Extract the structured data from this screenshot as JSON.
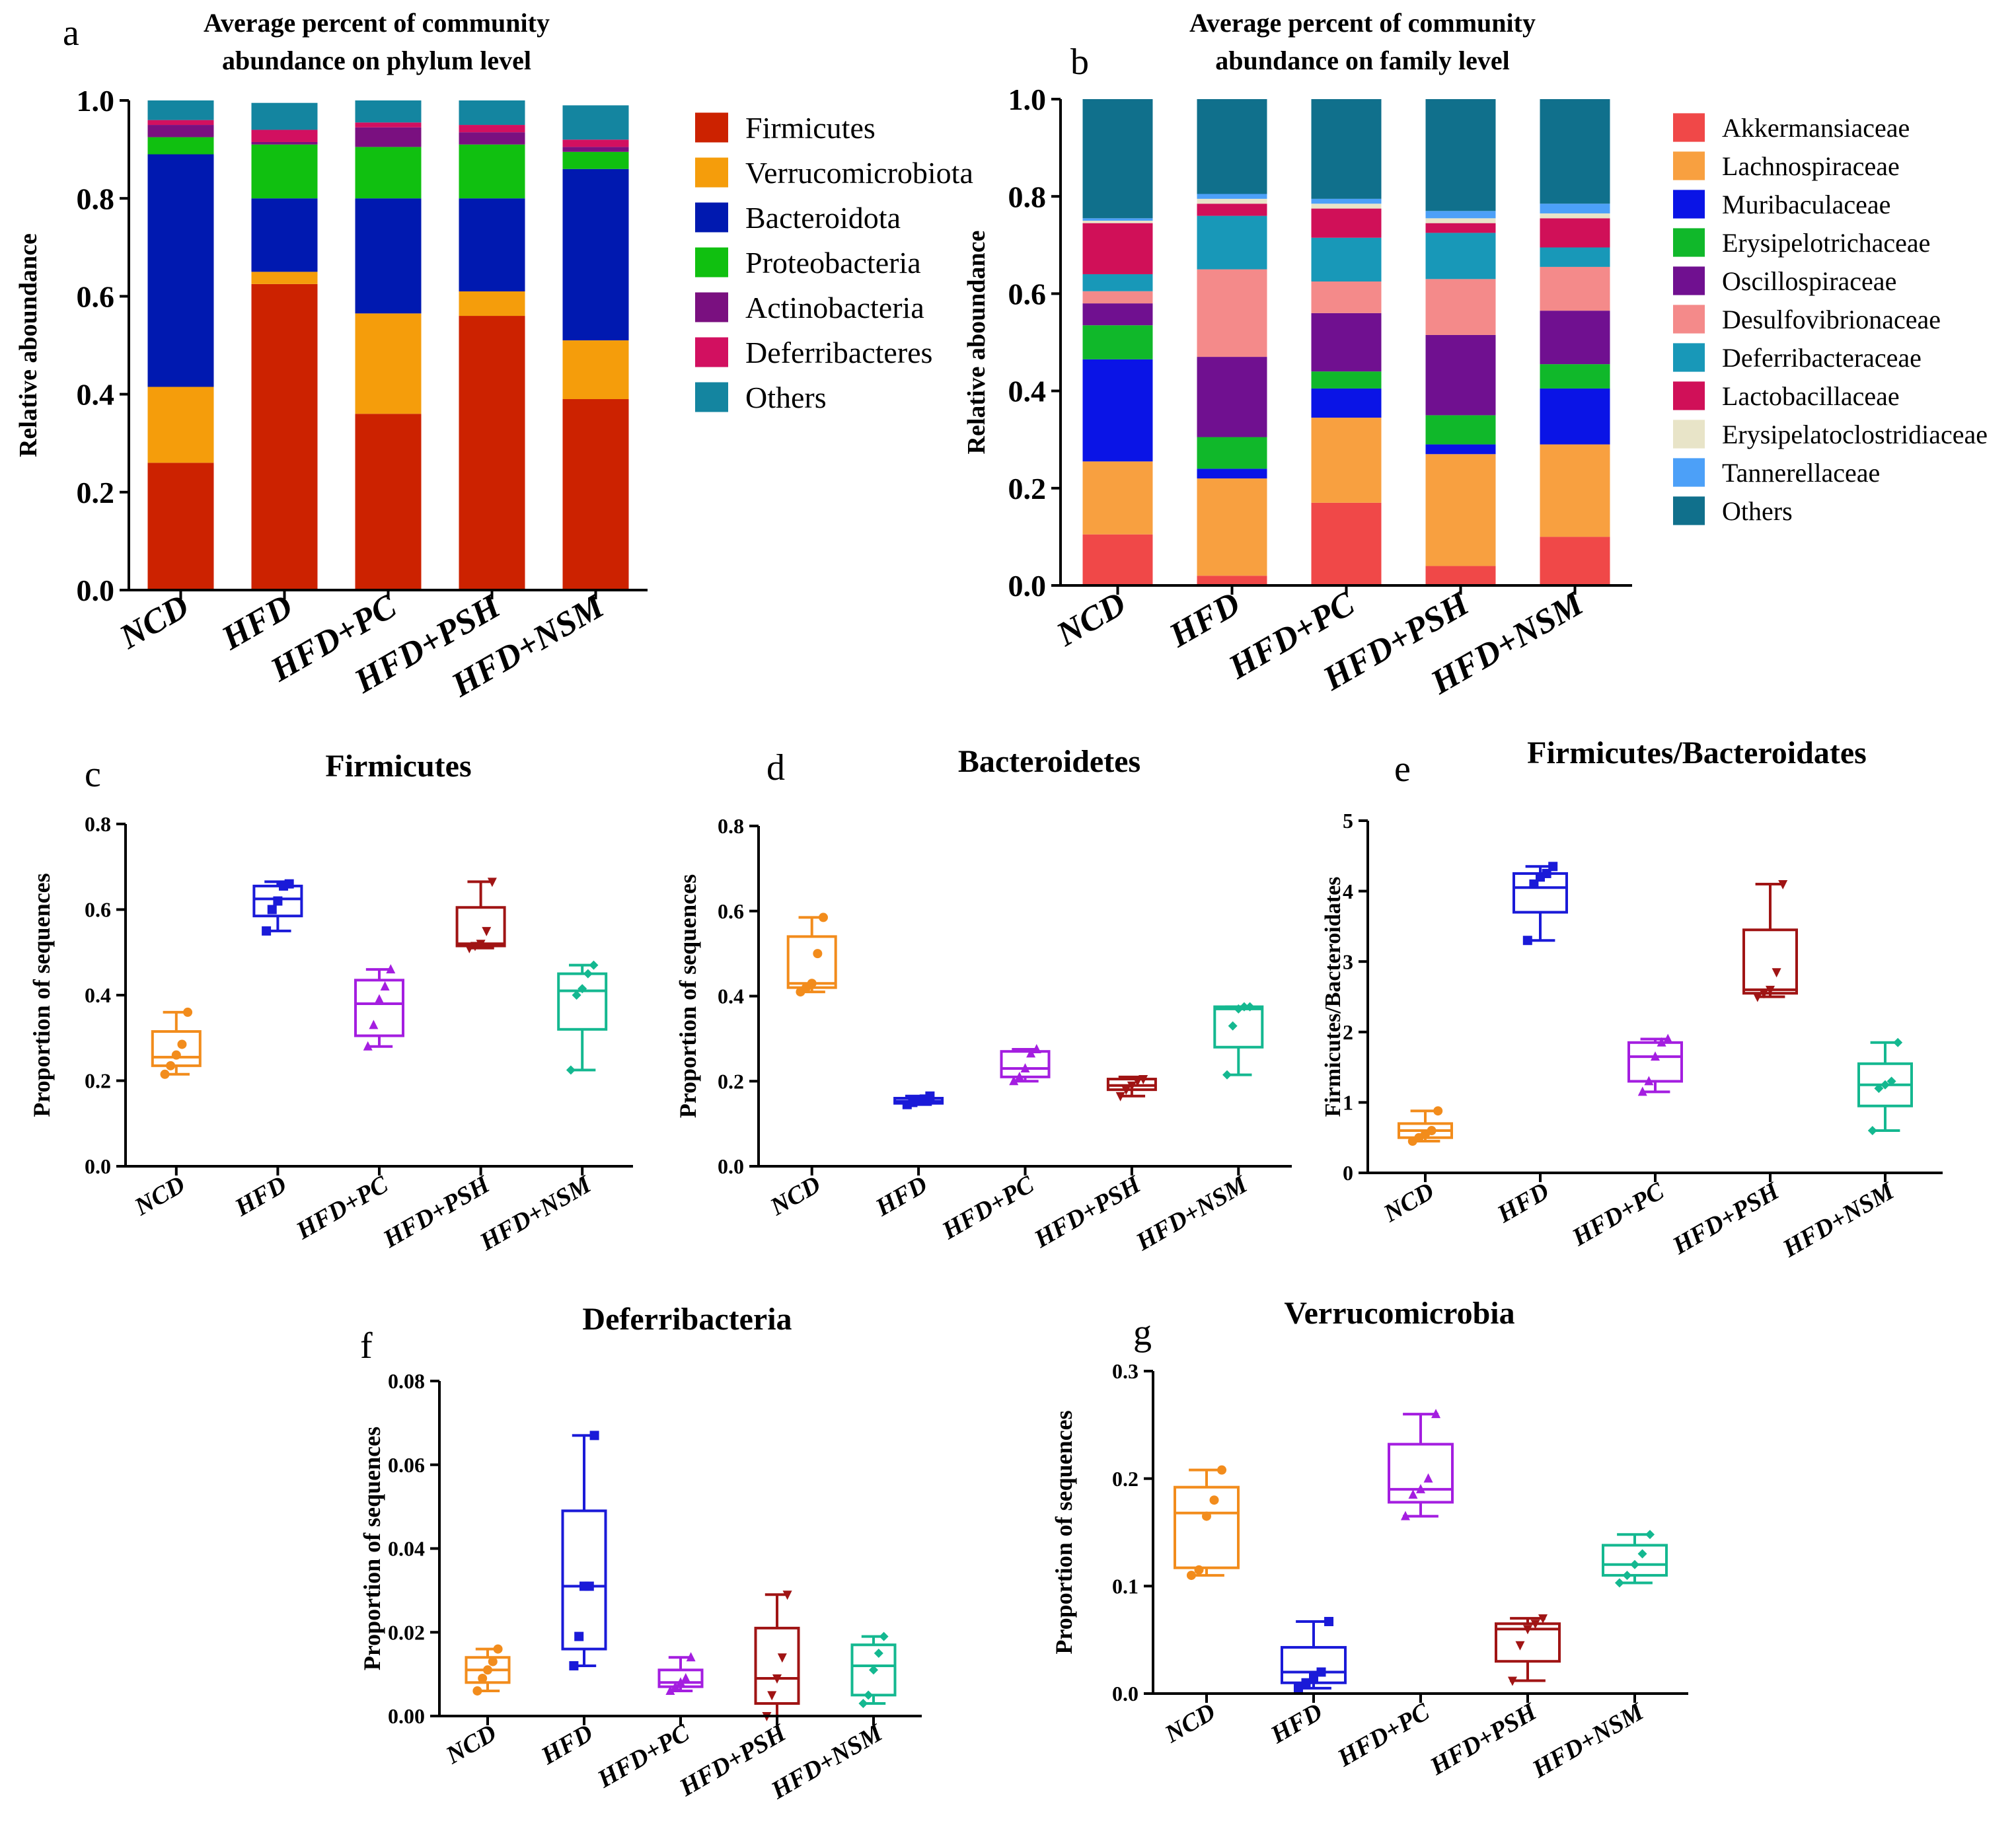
{
  "groups": [
    "NCD",
    "HFD",
    "HFD+PC",
    "HFD+PSH",
    "HFD+NSM"
  ],
  "chart_data": [
    {
      "id": "a",
      "panel_label": "a",
      "type": "bar",
      "stacked": true,
      "title_lines": [
        "Average percent of community",
        "abundance on phylum level"
      ],
      "ylabel": "Relative aboundance",
      "ylim": [
        0,
        1
      ],
      "yticks": [
        "0.0",
        "0.2",
        "0.4",
        "0.6",
        "0.8",
        "1.0"
      ],
      "categories": [
        "NCD",
        "HFD",
        "HFD+PC",
        "HFD+PSH",
        "HFD+NSM"
      ],
      "legend_position": "right",
      "series": [
        {
          "name": "Firmicutes",
          "color": "#cc2200",
          "values": [
            0.26,
            0.625,
            0.36,
            0.56,
            0.39
          ]
        },
        {
          "name": "Verrucomicrobiota",
          "color": "#f59d0b",
          "values": [
            0.155,
            0.025,
            0.205,
            0.05,
            0.12
          ]
        },
        {
          "name": "Bacteroidota",
          "color": "#0019b0",
          "values": [
            0.475,
            0.15,
            0.235,
            0.19,
            0.35
          ]
        },
        {
          "name": "Proteobacteria",
          "color": "#10c010",
          "values": [
            0.035,
            0.11,
            0.105,
            0.11,
            0.035
          ]
        },
        {
          "name": "Actinobacteria",
          "color": "#7a1080",
          "values": [
            0.025,
            0.005,
            0.04,
            0.025,
            0.01
          ]
        },
        {
          "name": "Deferribacteres",
          "color": "#d21060",
          "values": [
            0.01,
            0.025,
            0.01,
            0.015,
            0.015
          ]
        },
        {
          "name": "Others",
          "color": "#1485a0",
          "values": [
            0.04,
            0.055,
            0.045,
            0.05,
            0.07
          ]
        }
      ]
    },
    {
      "id": "b",
      "panel_label": "b",
      "type": "bar",
      "stacked": true,
      "title_lines": [
        "Average percent of community",
        "abundance on family level"
      ],
      "ylabel": "Relative aboundance",
      "ylim": [
        0,
        1
      ],
      "yticks": [
        "0.0",
        "0.2",
        "0.4",
        "0.6",
        "0.8",
        "1.0"
      ],
      "categories": [
        "NCD",
        "HFD",
        "HFD+PC",
        "HFD+PSH",
        "HFD+NSM"
      ],
      "legend_position": "right",
      "series": [
        {
          "name": "Akkermansiaceae",
          "color": "#f04848",
          "values": [
            0.105,
            0.02,
            0.17,
            0.04,
            0.1
          ]
        },
        {
          "name": "Lachnospiraceae",
          "color": "#f8a040",
          "values": [
            0.15,
            0.2,
            0.175,
            0.23,
            0.19
          ]
        },
        {
          "name": "Muribaculaceae",
          "color": "#0a14e6",
          "values": [
            0.21,
            0.02,
            0.06,
            0.02,
            0.115
          ]
        },
        {
          "name": "Erysipelotrichaceae",
          "color": "#10b82a",
          "values": [
            0.07,
            0.065,
            0.035,
            0.06,
            0.05
          ]
        },
        {
          "name": "Oscillospiraceae",
          "color": "#701090",
          "values": [
            0.045,
            0.165,
            0.12,
            0.165,
            0.11
          ]
        },
        {
          "name": "Desulfovibrionaceae",
          "color": "#f48a8a",
          "values": [
            0.025,
            0.18,
            0.065,
            0.115,
            0.09
          ]
        },
        {
          "name": "Deferribacteraceae",
          "color": "#1898b8",
          "values": [
            0.035,
            0.11,
            0.09,
            0.095,
            0.04
          ]
        },
        {
          "name": "Lactobacillaceae",
          "color": "#d01058",
          "values": [
            0.105,
            0.025,
            0.06,
            0.02,
            0.06
          ]
        },
        {
          "name": "Erysipelatoclostridiaceae",
          "color": "#e8e4c8",
          "values": [
            0.005,
            0.01,
            0.01,
            0.01,
            0.01
          ]
        },
        {
          "name": "Tannerellaceae",
          "color": "#4ca0f8",
          "values": [
            0.005,
            0.01,
            0.01,
            0.015,
            0.02
          ]
        },
        {
          "name": "Others",
          "color": "#10708c",
          "values": [
            0.245,
            0.195,
            0.21,
            0.23,
            0.215
          ]
        }
      ]
    },
    {
      "id": "c",
      "panel_label": "c",
      "type": "box",
      "title": "Firmicutes",
      "ylabel": "Proportion of sequences",
      "ylim": [
        0,
        0.8
      ],
      "yticks": [
        "0.0",
        "0.2",
        "0.4",
        "0.6",
        "0.8"
      ],
      "categories": [
        "NCD",
        "HFD",
        "HFD+PC",
        "HFD+PSH",
        "HFD+NSM"
      ],
      "boxes": [
        {
          "min": 0.215,
          "q1": 0.235,
          "median": 0.255,
          "q3": 0.315,
          "max": 0.36,
          "points": [
            0.215,
            0.235,
            0.26,
            0.285,
            0.36
          ]
        },
        {
          "min": 0.55,
          "q1": 0.585,
          "median": 0.625,
          "q3": 0.655,
          "max": 0.665,
          "points": [
            0.55,
            0.6,
            0.62,
            0.655,
            0.66
          ]
        },
        {
          "min": 0.28,
          "q1": 0.305,
          "median": 0.38,
          "q3": 0.435,
          "max": 0.46,
          "points": [
            0.28,
            0.33,
            0.39,
            0.42,
            0.46
          ]
        },
        {
          "min": 0.51,
          "q1": 0.515,
          "median": 0.52,
          "q3": 0.605,
          "max": 0.665,
          "points": [
            0.51,
            0.515,
            0.52,
            0.55,
            0.665
          ]
        },
        {
          "min": 0.225,
          "q1": 0.32,
          "median": 0.41,
          "q3": 0.45,
          "max": 0.47,
          "points": [
            0.225,
            0.4,
            0.415,
            0.45,
            0.47
          ]
        }
      ]
    },
    {
      "id": "d",
      "panel_label": "d",
      "type": "box",
      "title": "Bacteroidetes",
      "ylabel": "Proportion of sequences",
      "ylim": [
        0,
        0.8
      ],
      "yticks": [
        "0.0",
        "0.2",
        "0.4",
        "0.6",
        "0.8"
      ],
      "categories": [
        "NCD",
        "HFD",
        "HFD+PC",
        "HFD+PSH",
        "HFD+NSM"
      ],
      "boxes": [
        {
          "min": 0.41,
          "q1": 0.42,
          "median": 0.43,
          "q3": 0.54,
          "max": 0.585,
          "points": [
            0.41,
            0.42,
            0.43,
            0.5,
            0.585
          ]
        },
        {
          "min": 0.145,
          "q1": 0.148,
          "median": 0.153,
          "q3": 0.16,
          "max": 0.165,
          "points": [
            0.145,
            0.15,
            0.153,
            0.158,
            0.165
          ]
        },
        {
          "min": 0.2,
          "q1": 0.21,
          "median": 0.23,
          "q3": 0.27,
          "max": 0.275,
          "points": [
            0.2,
            0.21,
            0.23,
            0.265,
            0.275
          ]
        },
        {
          "min": 0.165,
          "q1": 0.18,
          "median": 0.19,
          "q3": 0.205,
          "max": 0.21,
          "points": [
            0.165,
            0.18,
            0.19,
            0.2,
            0.205
          ]
        },
        {
          "min": 0.215,
          "q1": 0.28,
          "median": 0.37,
          "q3": 0.375,
          "max": 0.375,
          "points": [
            0.215,
            0.33,
            0.37,
            0.375,
            0.375
          ]
        }
      ]
    },
    {
      "id": "e",
      "panel_label": "e",
      "type": "box",
      "title": "Firmicutes/Bacteroidates",
      "ylabel": "Firmicutes/Bacteroidates",
      "ylim": [
        0,
        5
      ],
      "yticks": [
        "0",
        "1",
        "2",
        "3",
        "4",
        "5"
      ],
      "categories": [
        "NCD",
        "HFD",
        "HFD+PC",
        "HFD+PSH",
        "HFD+NSM"
      ],
      "boxes": [
        {
          "min": 0.45,
          "q1": 0.5,
          "median": 0.6,
          "q3": 0.7,
          "max": 0.88,
          "points": [
            0.45,
            0.5,
            0.55,
            0.6,
            0.88
          ]
        },
        {
          "min": 3.3,
          "q1": 3.7,
          "median": 4.05,
          "q3": 4.25,
          "max": 4.35,
          "points": [
            3.3,
            4.1,
            4.2,
            4.25,
            4.35
          ]
        },
        {
          "min": 1.15,
          "q1": 1.3,
          "median": 1.65,
          "q3": 1.85,
          "max": 1.9,
          "points": [
            1.15,
            1.3,
            1.65,
            1.85,
            1.9
          ]
        },
        {
          "min": 2.5,
          "q1": 2.55,
          "median": 2.6,
          "q3": 3.45,
          "max": 4.1,
          "points": [
            2.5,
            2.55,
            2.6,
            2.85,
            4.1
          ]
        },
        {
          "min": 0.6,
          "q1": 0.95,
          "median": 1.25,
          "q3": 1.55,
          "max": 1.85,
          "points": [
            0.6,
            1.2,
            1.25,
            1.3,
            1.85
          ]
        }
      ]
    },
    {
      "id": "f",
      "panel_label": "f",
      "type": "box",
      "title": "Deferribacteria",
      "ylabel": "Proportion of sequences",
      "ylim": [
        0,
        0.08
      ],
      "yticks": [
        "0.00",
        "0.02",
        "0.04",
        "0.06",
        "0.08"
      ],
      "categories": [
        "NCD",
        "HFD",
        "HFD+PC",
        "HFD+PSH",
        "HFD+NSM"
      ],
      "boxes": [
        {
          "min": 0.006,
          "q1": 0.008,
          "median": 0.011,
          "q3": 0.014,
          "max": 0.016,
          "points": [
            0.006,
            0.009,
            0.011,
            0.013,
            0.016
          ]
        },
        {
          "min": 0.012,
          "q1": 0.016,
          "median": 0.031,
          "q3": 0.049,
          "max": 0.067,
          "points": [
            0.012,
            0.019,
            0.031,
            0.031,
            0.067
          ]
        },
        {
          "min": 0.006,
          "q1": 0.007,
          "median": 0.008,
          "q3": 0.011,
          "max": 0.014,
          "points": [
            0.006,
            0.007,
            0.008,
            0.009,
            0.014
          ]
        },
        {
          "min": 0.0,
          "q1": 0.003,
          "median": 0.009,
          "q3": 0.021,
          "max": 0.029,
          "points": [
            0.0,
            0.005,
            0.009,
            0.014,
            0.029
          ]
        },
        {
          "min": 0.003,
          "q1": 0.005,
          "median": 0.012,
          "q3": 0.017,
          "max": 0.019,
          "points": [
            0.003,
            0.005,
            0.011,
            0.015,
            0.019
          ]
        }
      ]
    },
    {
      "id": "g",
      "panel_label": "g",
      "type": "box",
      "title": "Verrucomicrobia",
      "ylabel": "Proportion of sequences",
      "ylim": [
        0,
        0.3
      ],
      "yticks": [
        "0.0",
        "0.1",
        "0.2",
        "0.3"
      ],
      "categories": [
        "NCD",
        "HFD",
        "HFD+PC",
        "HFD+PSH",
        "HFD+NSM"
      ],
      "boxes": [
        {
          "min": 0.11,
          "q1": 0.117,
          "median": 0.168,
          "q3": 0.192,
          "max": 0.208,
          "points": [
            0.11,
            0.115,
            0.165,
            0.18,
            0.208
          ]
        },
        {
          "min": 0.005,
          "q1": 0.01,
          "median": 0.02,
          "q3": 0.043,
          "max": 0.067,
          "points": [
            0.005,
            0.01,
            0.015,
            0.02,
            0.067
          ]
        },
        {
          "min": 0.165,
          "q1": 0.178,
          "median": 0.19,
          "q3": 0.232,
          "max": 0.26,
          "points": [
            0.165,
            0.185,
            0.19,
            0.2,
            0.26
          ]
        },
        {
          "min": 0.012,
          "q1": 0.03,
          "median": 0.06,
          "q3": 0.065,
          "max": 0.07,
          "points": [
            0.012,
            0.045,
            0.06,
            0.065,
            0.07
          ]
        },
        {
          "min": 0.103,
          "q1": 0.11,
          "median": 0.12,
          "q3": 0.138,
          "max": 0.148,
          "points": [
            0.103,
            0.11,
            0.12,
            0.13,
            0.148
          ]
        }
      ]
    }
  ],
  "box_colors": [
    "#f28c1c",
    "#1a1ad8",
    "#a41ee0",
    "#a01414",
    "#14b890"
  ]
}
